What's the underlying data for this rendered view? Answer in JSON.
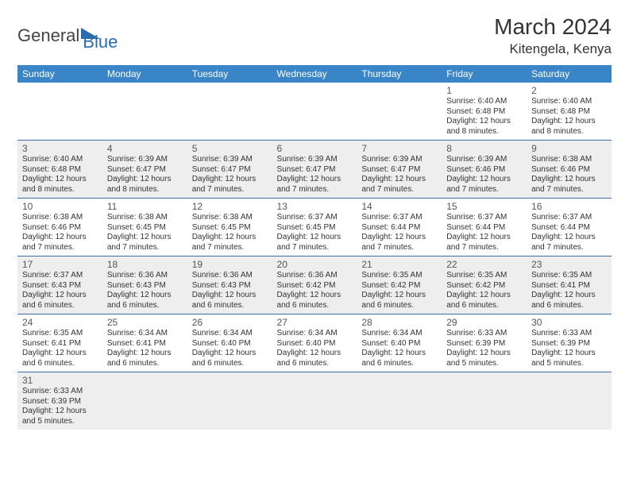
{
  "logo": {
    "text1": "General",
    "text2": "Blue"
  },
  "title": "March 2024",
  "location": "Kitengela, Kenya",
  "weekdays": [
    "Sunday",
    "Monday",
    "Tuesday",
    "Wednesday",
    "Thursday",
    "Friday",
    "Saturday"
  ],
  "colors": {
    "header_bg": "#3a85c8",
    "header_fg": "#ffffff",
    "row_border": "#3a6ea5",
    "alt_bg": "#eeeeee",
    "logo_blue": "#2a6cb0"
  },
  "weeks": [
    [
      null,
      null,
      null,
      null,
      null,
      {
        "n": "1",
        "sr": "Sunrise: 6:40 AM",
        "ss": "Sunset: 6:48 PM",
        "d1": "Daylight: 12 hours",
        "d2": "and 8 minutes."
      },
      {
        "n": "2",
        "sr": "Sunrise: 6:40 AM",
        "ss": "Sunset: 6:48 PM",
        "d1": "Daylight: 12 hours",
        "d2": "and 8 minutes."
      }
    ],
    [
      {
        "n": "3",
        "sr": "Sunrise: 6:40 AM",
        "ss": "Sunset: 6:48 PM",
        "d1": "Daylight: 12 hours",
        "d2": "and 8 minutes."
      },
      {
        "n": "4",
        "sr": "Sunrise: 6:39 AM",
        "ss": "Sunset: 6:47 PM",
        "d1": "Daylight: 12 hours",
        "d2": "and 8 minutes."
      },
      {
        "n": "5",
        "sr": "Sunrise: 6:39 AM",
        "ss": "Sunset: 6:47 PM",
        "d1": "Daylight: 12 hours",
        "d2": "and 7 minutes."
      },
      {
        "n": "6",
        "sr": "Sunrise: 6:39 AM",
        "ss": "Sunset: 6:47 PM",
        "d1": "Daylight: 12 hours",
        "d2": "and 7 minutes."
      },
      {
        "n": "7",
        "sr": "Sunrise: 6:39 AM",
        "ss": "Sunset: 6:47 PM",
        "d1": "Daylight: 12 hours",
        "d2": "and 7 minutes."
      },
      {
        "n": "8",
        "sr": "Sunrise: 6:39 AM",
        "ss": "Sunset: 6:46 PM",
        "d1": "Daylight: 12 hours",
        "d2": "and 7 minutes."
      },
      {
        "n": "9",
        "sr": "Sunrise: 6:38 AM",
        "ss": "Sunset: 6:46 PM",
        "d1": "Daylight: 12 hours",
        "d2": "and 7 minutes."
      }
    ],
    [
      {
        "n": "10",
        "sr": "Sunrise: 6:38 AM",
        "ss": "Sunset: 6:46 PM",
        "d1": "Daylight: 12 hours",
        "d2": "and 7 minutes."
      },
      {
        "n": "11",
        "sr": "Sunrise: 6:38 AM",
        "ss": "Sunset: 6:45 PM",
        "d1": "Daylight: 12 hours",
        "d2": "and 7 minutes."
      },
      {
        "n": "12",
        "sr": "Sunrise: 6:38 AM",
        "ss": "Sunset: 6:45 PM",
        "d1": "Daylight: 12 hours",
        "d2": "and 7 minutes."
      },
      {
        "n": "13",
        "sr": "Sunrise: 6:37 AM",
        "ss": "Sunset: 6:45 PM",
        "d1": "Daylight: 12 hours",
        "d2": "and 7 minutes."
      },
      {
        "n": "14",
        "sr": "Sunrise: 6:37 AM",
        "ss": "Sunset: 6:44 PM",
        "d1": "Daylight: 12 hours",
        "d2": "and 7 minutes."
      },
      {
        "n": "15",
        "sr": "Sunrise: 6:37 AM",
        "ss": "Sunset: 6:44 PM",
        "d1": "Daylight: 12 hours",
        "d2": "and 7 minutes."
      },
      {
        "n": "16",
        "sr": "Sunrise: 6:37 AM",
        "ss": "Sunset: 6:44 PM",
        "d1": "Daylight: 12 hours",
        "d2": "and 7 minutes."
      }
    ],
    [
      {
        "n": "17",
        "sr": "Sunrise: 6:37 AM",
        "ss": "Sunset: 6:43 PM",
        "d1": "Daylight: 12 hours",
        "d2": "and 6 minutes."
      },
      {
        "n": "18",
        "sr": "Sunrise: 6:36 AM",
        "ss": "Sunset: 6:43 PM",
        "d1": "Daylight: 12 hours",
        "d2": "and 6 minutes."
      },
      {
        "n": "19",
        "sr": "Sunrise: 6:36 AM",
        "ss": "Sunset: 6:43 PM",
        "d1": "Daylight: 12 hours",
        "d2": "and 6 minutes."
      },
      {
        "n": "20",
        "sr": "Sunrise: 6:36 AM",
        "ss": "Sunset: 6:42 PM",
        "d1": "Daylight: 12 hours",
        "d2": "and 6 minutes."
      },
      {
        "n": "21",
        "sr": "Sunrise: 6:35 AM",
        "ss": "Sunset: 6:42 PM",
        "d1": "Daylight: 12 hours",
        "d2": "and 6 minutes."
      },
      {
        "n": "22",
        "sr": "Sunrise: 6:35 AM",
        "ss": "Sunset: 6:42 PM",
        "d1": "Daylight: 12 hours",
        "d2": "and 6 minutes."
      },
      {
        "n": "23",
        "sr": "Sunrise: 6:35 AM",
        "ss": "Sunset: 6:41 PM",
        "d1": "Daylight: 12 hours",
        "d2": "and 6 minutes."
      }
    ],
    [
      {
        "n": "24",
        "sr": "Sunrise: 6:35 AM",
        "ss": "Sunset: 6:41 PM",
        "d1": "Daylight: 12 hours",
        "d2": "and 6 minutes."
      },
      {
        "n": "25",
        "sr": "Sunrise: 6:34 AM",
        "ss": "Sunset: 6:41 PM",
        "d1": "Daylight: 12 hours",
        "d2": "and 6 minutes."
      },
      {
        "n": "26",
        "sr": "Sunrise: 6:34 AM",
        "ss": "Sunset: 6:40 PM",
        "d1": "Daylight: 12 hours",
        "d2": "and 6 minutes."
      },
      {
        "n": "27",
        "sr": "Sunrise: 6:34 AM",
        "ss": "Sunset: 6:40 PM",
        "d1": "Daylight: 12 hours",
        "d2": "and 6 minutes."
      },
      {
        "n": "28",
        "sr": "Sunrise: 6:34 AM",
        "ss": "Sunset: 6:40 PM",
        "d1": "Daylight: 12 hours",
        "d2": "and 6 minutes."
      },
      {
        "n": "29",
        "sr": "Sunrise: 6:33 AM",
        "ss": "Sunset: 6:39 PM",
        "d1": "Daylight: 12 hours",
        "d2": "and 5 minutes."
      },
      {
        "n": "30",
        "sr": "Sunrise: 6:33 AM",
        "ss": "Sunset: 6:39 PM",
        "d1": "Daylight: 12 hours",
        "d2": "and 5 minutes."
      }
    ],
    [
      {
        "n": "31",
        "sr": "Sunrise: 6:33 AM",
        "ss": "Sunset: 6:39 PM",
        "d1": "Daylight: 12 hours",
        "d2": "and 5 minutes."
      },
      null,
      null,
      null,
      null,
      null,
      null
    ]
  ]
}
